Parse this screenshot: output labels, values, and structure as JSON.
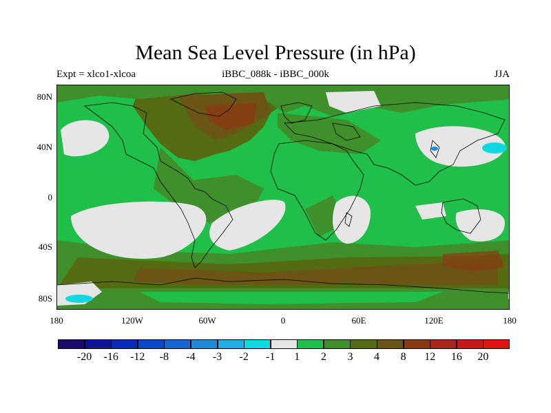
{
  "title": "Mean Sea Level Pressure (in hPa)",
  "left_string": "Expt = xlco1-xlcoa",
  "center_string": "iBBC_088k - iBBC_000k",
  "right_string": "JJA",
  "lat_labels": [
    "80N",
    "40N",
    "0",
    "40S",
    "80S"
  ],
  "lon_labels": [
    "180",
    "120W",
    "60W",
    "0",
    "60E",
    "120E",
    "180"
  ],
  "colorbar": {
    "labels": [
      "-20",
      "-16",
      "-12",
      "-8",
      "-4",
      "-3",
      "-2",
      "-1",
      "1",
      "2",
      "3",
      "4",
      "8",
      "12",
      "16",
      "20"
    ],
    "colors": [
      "#1a0a6e",
      "#0d1596",
      "#0a2ab8",
      "#0a48c8",
      "#1466d0",
      "#1e8ad8",
      "#22aee0",
      "#10d8e0",
      "#e6e6e6",
      "#1fbf49",
      "#3f8f2a",
      "#556b12",
      "#6b5514",
      "#8a3a12",
      "#a8261a",
      "#c81818",
      "#e01414"
    ]
  },
  "colors": {
    "low_positive": "#1fbf49",
    "mid_positive": "#3f8f2a",
    "high_positive": "#6b5514",
    "near_zero": "#e6e6e6",
    "negative": "#10d8e0"
  }
}
